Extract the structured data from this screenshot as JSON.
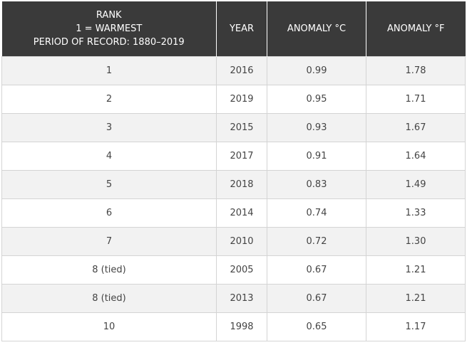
{
  "table": {
    "headers": {
      "rank": [
        "RANK",
        "1 = WARMEST",
        "PERIOD OF RECORD: 1880–2019"
      ],
      "year": "YEAR",
      "anomaly_c": "ANOMALY °C",
      "anomaly_f": "ANOMALY °F"
    },
    "rows": [
      {
        "rank": "1",
        "year": "2016",
        "anomaly_c": "0.99",
        "anomaly_f": "1.78"
      },
      {
        "rank": "2",
        "year": "2019",
        "anomaly_c": "0.95",
        "anomaly_f": "1.71"
      },
      {
        "rank": "3",
        "year": "2015",
        "anomaly_c": "0.93",
        "anomaly_f": "1.67"
      },
      {
        "rank": "4",
        "year": "2017",
        "anomaly_c": "0.91",
        "anomaly_f": "1.64"
      },
      {
        "rank": "5",
        "year": "2018",
        "anomaly_c": "0.83",
        "anomaly_f": "1.49"
      },
      {
        "rank": "6",
        "year": "2014",
        "anomaly_c": "0.74",
        "anomaly_f": "1.33"
      },
      {
        "rank": "7",
        "year": "2010",
        "anomaly_c": "0.72",
        "anomaly_f": "1.30"
      },
      {
        "rank": "8 (tied)",
        "year": "2005",
        "anomaly_c": "0.67",
        "anomaly_f": "1.21"
      },
      {
        "rank": "8 (tied)",
        "year": "2013",
        "anomaly_c": "0.67",
        "anomaly_f": "1.21"
      },
      {
        "rank": "10",
        "year": "1998",
        "anomaly_c": "0.65",
        "anomaly_f": "1.17"
      }
    ]
  },
  "colors": {
    "header_bg": "#3a3a3a",
    "header_text": "#ffffff",
    "row_odd_bg": "#f2f2f2",
    "row_even_bg": "#ffffff",
    "cell_border": "#d4d4d4",
    "cell_text": "#444444"
  }
}
